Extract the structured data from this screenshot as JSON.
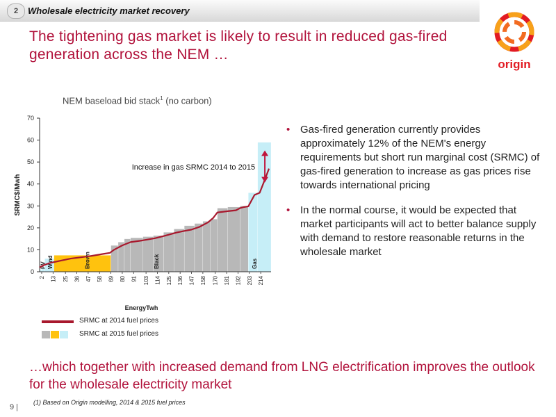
{
  "header": {
    "section_number": "2",
    "section_title": "Wholesale electricity market recovery"
  },
  "slide": {
    "title": "The tightening gas market is likely to result in reduced gas-fired generation across the NEM …",
    "bottom_title": "…which together with increased demand from LNG electrification improves the outlook for the wholesale electricity market",
    "page_number": "9 |",
    "footnote": "(1)  Based on Origin modelling, 2014 & 2015 fuel prices"
  },
  "logo": {
    "text": "origin",
    "icon": "origin-ring-logo"
  },
  "bullets": [
    "Gas-fired generation currently provides approximately 12% of the NEM's energy requirements but short run marginal cost (SRMC) of gas-fired generation to increase as gas prices rise towards international pricing",
    "In the normal course, it would be expected that market participants will act to better balance supply with demand to restore reasonable returns in the wholesale market"
  ],
  "legend": {
    "line_label": "SRMC at 2014 fuel prices",
    "bars_label": "SRMC at 2015 fuel prices",
    "swatch_colors": [
      "#b8b8b8",
      "#ffc20e",
      "#c6eef7"
    ]
  },
  "chart_data": {
    "type": "bar",
    "title": "NEM baseload bid stack",
    "title_sup": "1",
    "title_suffix": "(no carbon)",
    "xlabel": "EnergyTwh",
    "ylabel": "SRMC$/Mwh",
    "ylim": [
      0,
      70
    ],
    "yticks": [
      0,
      10,
      20,
      30,
      40,
      50,
      60,
      70
    ],
    "x_range": [
      0,
      224
    ],
    "x_ticks": [
      2,
      13,
      25,
      36,
      47,
      58,
      69,
      80,
      91,
      103,
      114,
      125,
      136,
      147,
      158,
      170,
      181,
      192,
      203,
      214
    ],
    "colors": {
      "Other": "#b8b8b8",
      "Brown": "#ffc20e",
      "Gas": "#c6eef7",
      "PV_Wind": "#c6eef7",
      "line": "#a8182d",
      "arrow": "#c0143c"
    },
    "bars": [
      {
        "x0": 0,
        "x1": 2,
        "value": 1,
        "fuel": "PV_Wind"
      },
      {
        "x0": 2,
        "x1": 5,
        "value": 2,
        "fuel": "PV_Wind"
      },
      {
        "x0": 5,
        "x1": 14,
        "value": 6,
        "fuel": "PV_Wind"
      },
      {
        "x0": 14,
        "x1": 69,
        "value": 7.5,
        "fuel": "Brown"
      },
      {
        "x0": 69,
        "x1": 76,
        "value": 12,
        "fuel": "Other"
      },
      {
        "x0": 76,
        "x1": 82,
        "value": 13.5,
        "fuel": "Other"
      },
      {
        "x0": 82,
        "x1": 88,
        "value": 15,
        "fuel": "Other"
      },
      {
        "x0": 88,
        "x1": 100,
        "value": 15.5,
        "fuel": "Other"
      },
      {
        "x0": 100,
        "x1": 110,
        "value": 16,
        "fuel": "Other"
      },
      {
        "x0": 110,
        "x1": 120,
        "value": 16.5,
        "fuel": "Other"
      },
      {
        "x0": 120,
        "x1": 130,
        "value": 18,
        "fuel": "Other"
      },
      {
        "x0": 130,
        "x1": 140,
        "value": 19.5,
        "fuel": "Other"
      },
      {
        "x0": 140,
        "x1": 150,
        "value": 21,
        "fuel": "Other"
      },
      {
        "x0": 150,
        "x1": 158,
        "value": 22,
        "fuel": "Other"
      },
      {
        "x0": 158,
        "x1": 165,
        "value": 23,
        "fuel": "Other"
      },
      {
        "x0": 165,
        "x1": 172,
        "value": 24,
        "fuel": "Other"
      },
      {
        "x0": 172,
        "x1": 182,
        "value": 29,
        "fuel": "Other"
      },
      {
        "x0": 182,
        "x1": 194,
        "value": 29.5,
        "fuel": "Other"
      },
      {
        "x0": 194,
        "x1": 202,
        "value": 30,
        "fuel": "Other"
      },
      {
        "x0": 202,
        "x1": 211,
        "value": 36,
        "fuel": "Gas"
      },
      {
        "x0": 211,
        "x1": 224,
        "value": 59,
        "fuel": "Gas"
      }
    ],
    "series": [
      {
        "name": "SRMC at 2014 fuel prices",
        "x": [
          0,
          4,
          10,
          20,
          30,
          40,
          50,
          60,
          68,
          72,
          80,
          88,
          100,
          112,
          122,
          132,
          140,
          147,
          155,
          163,
          168,
          172,
          182,
          190,
          194,
          198,
          202,
          208,
          213,
          218,
          222
        ],
        "y": [
          2,
          3,
          4,
          5,
          6,
          6.6,
          7.2,
          8,
          8.6,
          10,
          12,
          13.5,
          14.3,
          15.3,
          16.5,
          17.8,
          18.6,
          19.2,
          20.5,
          22.5,
          24.5,
          27,
          27.6,
          28,
          29,
          29.5,
          29.8,
          35,
          36,
          42,
          47
        ]
      }
    ],
    "fuel_labels": [
      {
        "text": "PV",
        "x": 3
      },
      {
        "text": "Wind",
        "x": 10
      },
      {
        "text": "Brown",
        "x": 46
      },
      {
        "text": "Black",
        "x": 113
      },
      {
        "text": "Gas",
        "x": 208
      }
    ],
    "annotation": {
      "text": "Increase in gas SRMC 2014 to 2015",
      "arrow_x": 218,
      "arrow_from": 41,
      "arrow_to": 55
    }
  }
}
